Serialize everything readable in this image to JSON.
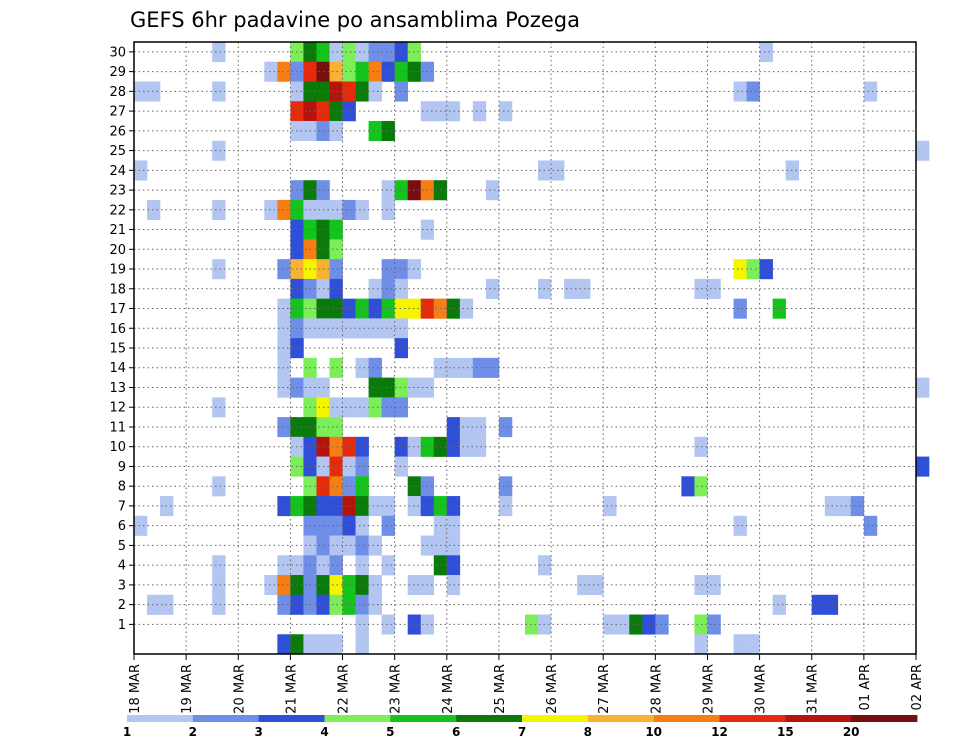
{
  "chart_data": {
    "type": "heatmap",
    "title": "GEFS 6hr padavine po ansamblima Pozega",
    "xlabel": "",
    "ylabel": "",
    "grid": true,
    "x_tick_labels": [
      "18 MAR",
      "19 MAR",
      "20 MAR",
      "21 MAR",
      "22 MAR",
      "23 MAR",
      "24 MAR",
      "25 MAR",
      "26 MAR",
      "27 MAR",
      "28 MAR",
      "29 MAR",
      "30 MAR",
      "31 MAR",
      "01 APR",
      "02 APR"
    ],
    "y_tick_labels": [
      "1",
      "2",
      "3",
      "4",
      "5",
      "6",
      "7",
      "8",
      "9",
      "10",
      "11",
      "12",
      "13",
      "14",
      "15",
      "16",
      "17",
      "18",
      "19",
      "20",
      "21",
      "22",
      "23",
      "24",
      "25",
      "26",
      "27",
      "28",
      "29",
      "30"
    ],
    "steps_per_day": 4,
    "colorbar": {
      "levels": [
        "1",
        "2",
        "3",
        "4",
        "5",
        "6",
        "7",
        "8",
        "10",
        "12",
        "15",
        "20"
      ],
      "colors": [
        "#b3c6f2",
        "#6f8ee8",
        "#2f4fd8",
        "#7cee58",
        "#14c41c",
        "#0a7a0a",
        "#f5f500",
        "#f9b132",
        "#f77e12",
        "#e52b0c",
        "#b5140c",
        "#780f0f"
      ]
    },
    "values_note": "cells: [member, step, class]; class indexes colorbar.colors (0=1-2 mm ... 11=>20 mm); step 0 = 18 MAR 00z",
    "cells": [
      [
        30,
        6,
        0
      ],
      [
        30,
        12,
        3
      ],
      [
        30,
        13,
        5
      ],
      [
        30,
        14,
        4
      ],
      [
        30,
        15,
        0
      ],
      [
        30,
        16,
        3
      ],
      [
        30,
        17,
        0
      ],
      [
        30,
        18,
        1
      ],
      [
        30,
        19,
        1
      ],
      [
        30,
        20,
        2
      ],
      [
        30,
        21,
        3
      ],
      [
        30,
        48,
        0
      ],
      [
        29,
        10,
        0
      ],
      [
        29,
        11,
        8
      ],
      [
        29,
        12,
        1
      ],
      [
        29,
        13,
        9
      ],
      [
        29,
        14,
        11
      ],
      [
        29,
        15,
        7
      ],
      [
        29,
        16,
        3
      ],
      [
        29,
        17,
        4
      ],
      [
        29,
        18,
        8
      ],
      [
        29,
        19,
        2
      ],
      [
        29,
        20,
        4
      ],
      [
        29,
        21,
        5
      ],
      [
        29,
        22,
        1
      ],
      [
        28,
        0,
        0
      ],
      [
        28,
        1,
        0
      ],
      [
        28,
        6,
        0
      ],
      [
        28,
        12,
        0
      ],
      [
        28,
        13,
        5
      ],
      [
        28,
        14,
        5
      ],
      [
        28,
        15,
        10
      ],
      [
        28,
        16,
        9
      ],
      [
        28,
        17,
        5
      ],
      [
        28,
        18,
        0
      ],
      [
        28,
        20,
        1
      ],
      [
        28,
        46,
        0
      ],
      [
        28,
        47,
        1
      ],
      [
        28,
        56,
        0
      ],
      [
        27,
        12,
        9
      ],
      [
        27,
        13,
        10
      ],
      [
        27,
        14,
        9
      ],
      [
        27,
        15,
        5
      ],
      [
        27,
        16,
        2
      ],
      [
        27,
        22,
        0
      ],
      [
        27,
        23,
        0
      ],
      [
        27,
        24,
        0
      ],
      [
        27,
        26,
        0
      ],
      [
        27,
        28,
        0
      ],
      [
        26,
        12,
        0
      ],
      [
        26,
        13,
        0
      ],
      [
        26,
        14,
        1
      ],
      [
        26,
        15,
        0
      ],
      [
        26,
        18,
        4
      ],
      [
        26,
        19,
        5
      ],
      [
        25,
        6,
        0
      ],
      [
        25,
        60,
        0
      ],
      [
        24,
        0,
        0
      ],
      [
        24,
        31,
        0
      ],
      [
        24,
        32,
        0
      ],
      [
        24,
        50,
        0
      ],
      [
        23,
        12,
        1
      ],
      [
        23,
        13,
        5
      ],
      [
        23,
        14,
        1
      ],
      [
        23,
        19,
        0
      ],
      [
        23,
        20,
        4
      ],
      [
        23,
        21,
        11
      ],
      [
        23,
        22,
        8
      ],
      [
        23,
        23,
        5
      ],
      [
        23,
        27,
        0
      ],
      [
        22,
        1,
        0
      ],
      [
        22,
        6,
        0
      ],
      [
        22,
        10,
        0
      ],
      [
        22,
        11,
        8
      ],
      [
        22,
        12,
        4
      ],
      [
        22,
        13,
        0
      ],
      [
        22,
        14,
        0
      ],
      [
        22,
        15,
        0
      ],
      [
        22,
        16,
        1
      ],
      [
        22,
        17,
        0
      ],
      [
        22,
        19,
        0
      ],
      [
        21,
        12,
        2
      ],
      [
        21,
        13,
        4
      ],
      [
        21,
        14,
        5
      ],
      [
        21,
        15,
        4
      ],
      [
        21,
        22,
        0
      ],
      [
        20,
        12,
        2
      ],
      [
        20,
        13,
        8
      ],
      [
        20,
        14,
        5
      ],
      [
        20,
        15,
        3
      ],
      [
        19,
        6,
        0
      ],
      [
        19,
        11,
        1
      ],
      [
        19,
        12,
        7
      ],
      [
        19,
        13,
        6
      ],
      [
        19,
        14,
        7
      ],
      [
        19,
        15,
        1
      ],
      [
        19,
        19,
        1
      ],
      [
        19,
        20,
        1
      ],
      [
        19,
        21,
        0
      ],
      [
        19,
        46,
        6
      ],
      [
        19,
        47,
        3
      ],
      [
        19,
        48,
        2
      ],
      [
        18,
        12,
        2
      ],
      [
        18,
        13,
        1
      ],
      [
        18,
        14,
        0
      ],
      [
        18,
        15,
        2
      ],
      [
        18,
        18,
        0
      ],
      [
        18,
        19,
        1
      ],
      [
        18,
        20,
        0
      ],
      [
        18,
        27,
        0
      ],
      [
        18,
        31,
        0
      ],
      [
        18,
        33,
        0
      ],
      [
        18,
        34,
        0
      ],
      [
        18,
        43,
        0
      ],
      [
        18,
        44,
        0
      ],
      [
        17,
        11,
        0
      ],
      [
        17,
        12,
        4
      ],
      [
        17,
        13,
        3
      ],
      [
        17,
        14,
        5
      ],
      [
        17,
        15,
        5
      ],
      [
        17,
        16,
        2
      ],
      [
        17,
        17,
        4
      ],
      [
        17,
        18,
        2
      ],
      [
        17,
        19,
        4
      ],
      [
        17,
        20,
        6
      ],
      [
        17,
        21,
        6
      ],
      [
        17,
        22,
        9
      ],
      [
        17,
        23,
        8
      ],
      [
        17,
        24,
        5
      ],
      [
        17,
        25,
        0
      ],
      [
        17,
        46,
        1
      ],
      [
        17,
        49,
        4
      ],
      [
        16,
        11,
        0
      ],
      [
        16,
        12,
        1
      ],
      [
        16,
        13,
        0
      ],
      [
        16,
        14,
        0
      ],
      [
        16,
        15,
        0
      ],
      [
        16,
        16,
        0
      ],
      [
        16,
        17,
        0
      ],
      [
        16,
        18,
        0
      ],
      [
        16,
        19,
        0
      ],
      [
        16,
        20,
        0
      ],
      [
        15,
        11,
        0
      ],
      [
        15,
        12,
        2
      ],
      [
        15,
        20,
        2
      ],
      [
        14,
        11,
        0
      ],
      [
        14,
        13,
        3
      ],
      [
        14,
        15,
        3
      ],
      [
        14,
        17,
        0
      ],
      [
        14,
        18,
        1
      ],
      [
        14,
        23,
        0
      ],
      [
        14,
        24,
        0
      ],
      [
        14,
        25,
        0
      ],
      [
        14,
        26,
        1
      ],
      [
        14,
        27,
        1
      ],
      [
        13,
        11,
        0
      ],
      [
        13,
        12,
        1
      ],
      [
        13,
        13,
        0
      ],
      [
        13,
        14,
        0
      ],
      [
        13,
        18,
        5
      ],
      [
        13,
        19,
        5
      ],
      [
        13,
        20,
        3
      ],
      [
        13,
        21,
        0
      ],
      [
        13,
        22,
        0
      ],
      [
        13,
        60,
        0
      ],
      [
        12,
        6,
        0
      ],
      [
        12,
        13,
        3
      ],
      [
        12,
        14,
        6
      ],
      [
        12,
        15,
        0
      ],
      [
        12,
        16,
        0
      ],
      [
        12,
        17,
        0
      ],
      [
        12,
        18,
        3
      ],
      [
        12,
        19,
        1
      ],
      [
        12,
        20,
        1
      ],
      [
        11,
        11,
        1
      ],
      [
        11,
        12,
        5
      ],
      [
        11,
        13,
        5
      ],
      [
        11,
        14,
        3
      ],
      [
        11,
        15,
        3
      ],
      [
        11,
        24,
        2
      ],
      [
        11,
        25,
        0
      ],
      [
        11,
        26,
        0
      ],
      [
        11,
        28,
        1
      ],
      [
        10,
        12,
        0
      ],
      [
        10,
        13,
        2
      ],
      [
        10,
        14,
        10
      ],
      [
        10,
        15,
        8
      ],
      [
        10,
        16,
        9
      ],
      [
        10,
        17,
        2
      ],
      [
        10,
        20,
        2
      ],
      [
        10,
        21,
        0
      ],
      [
        10,
        22,
        4
      ],
      [
        10,
        23,
        5
      ],
      [
        10,
        24,
        2
      ],
      [
        10,
        25,
        0
      ],
      [
        10,
        26,
        0
      ],
      [
        10,
        43,
        0
      ],
      [
        9,
        12,
        3
      ],
      [
        9,
        13,
        2
      ],
      [
        9,
        14,
        0
      ],
      [
        9,
        15,
        9
      ],
      [
        9,
        16,
        0
      ],
      [
        9,
        17,
        1
      ],
      [
        9,
        20,
        0
      ],
      [
        9,
        60,
        2
      ],
      [
        8,
        6,
        0
      ],
      [
        8,
        13,
        3
      ],
      [
        8,
        14,
        9
      ],
      [
        8,
        15,
        8
      ],
      [
        8,
        16,
        1
      ],
      [
        8,
        17,
        4
      ],
      [
        8,
        21,
        5
      ],
      [
        8,
        22,
        1
      ],
      [
        8,
        28,
        1
      ],
      [
        8,
        42,
        2
      ],
      [
        8,
        43,
        3
      ],
      [
        7,
        2,
        0
      ],
      [
        7,
        11,
        2
      ],
      [
        7,
        12,
        4
      ],
      [
        7,
        13,
        5
      ],
      [
        7,
        14,
        2
      ],
      [
        7,
        15,
        2
      ],
      [
        7,
        16,
        10
      ],
      [
        7,
        17,
        5
      ],
      [
        7,
        18,
        0
      ],
      [
        7,
        19,
        0
      ],
      [
        7,
        21,
        0
      ],
      [
        7,
        22,
        2
      ],
      [
        7,
        23,
        4
      ],
      [
        7,
        24,
        2
      ],
      [
        7,
        28,
        0
      ],
      [
        7,
        36,
        0
      ],
      [
        7,
        53,
        0
      ],
      [
        7,
        54,
        0
      ],
      [
        7,
        55,
        1
      ],
      [
        6,
        0,
        0
      ],
      [
        6,
        13,
        1
      ],
      [
        6,
        14,
        1
      ],
      [
        6,
        15,
        1
      ],
      [
        6,
        16,
        2
      ],
      [
        6,
        17,
        0
      ],
      [
        6,
        19,
        1
      ],
      [
        6,
        23,
        0
      ],
      [
        6,
        24,
        0
      ],
      [
        6,
        46,
        0
      ],
      [
        6,
        56,
        1
      ],
      [
        5,
        13,
        0
      ],
      [
        5,
        14,
        1
      ],
      [
        5,
        15,
        0
      ],
      [
        5,
        16,
        0
      ],
      [
        5,
        17,
        1
      ],
      [
        5,
        18,
        0
      ],
      [
        5,
        22,
        0
      ],
      [
        5,
        23,
        0
      ],
      [
        5,
        24,
        0
      ],
      [
        4,
        6,
        0
      ],
      [
        4,
        11,
        0
      ],
      [
        4,
        12,
        0
      ],
      [
        4,
        13,
        1
      ],
      [
        4,
        14,
        0
      ],
      [
        4,
        15,
        1
      ],
      [
        4,
        17,
        0
      ],
      [
        4,
        19,
        0
      ],
      [
        4,
        23,
        5
      ],
      [
        4,
        24,
        2
      ],
      [
        4,
        31,
        0
      ],
      [
        3,
        6,
        0
      ],
      [
        3,
        10,
        0
      ],
      [
        3,
        11,
        8
      ],
      [
        3,
        12,
        5
      ],
      [
        3,
        13,
        1
      ],
      [
        3,
        14,
        5
      ],
      [
        3,
        15,
        6
      ],
      [
        3,
        16,
        4
      ],
      [
        3,
        17,
        5
      ],
      [
        3,
        18,
        0
      ],
      [
        3,
        21,
        0
      ],
      [
        3,
        22,
        0
      ],
      [
        3,
        24,
        0
      ],
      [
        3,
        34,
        0
      ],
      [
        3,
        35,
        0
      ],
      [
        3,
        43,
        0
      ],
      [
        3,
        44,
        0
      ],
      [
        2,
        1,
        0
      ],
      [
        2,
        2,
        0
      ],
      [
        2,
        6,
        0
      ],
      [
        2,
        11,
        1
      ],
      [
        2,
        12,
        2
      ],
      [
        2,
        13,
        1
      ],
      [
        2,
        14,
        2
      ],
      [
        2,
        15,
        3
      ],
      [
        2,
        16,
        4
      ],
      [
        2,
        17,
        1
      ],
      [
        2,
        18,
        0
      ],
      [
        2,
        49,
        0
      ],
      [
        2,
        52,
        2
      ],
      [
        2,
        53,
        2
      ],
      [
        1,
        17,
        0
      ],
      [
        1,
        19,
        0
      ],
      [
        1,
        21,
        2
      ],
      [
        1,
        22,
        0
      ],
      [
        1,
        30,
        3
      ],
      [
        1,
        31,
        0
      ],
      [
        1,
        36,
        0
      ],
      [
        1,
        37,
        0
      ],
      [
        1,
        38,
        5
      ],
      [
        1,
        39,
        2
      ],
      [
        1,
        40,
        1
      ],
      [
        1,
        43,
        3
      ],
      [
        1,
        44,
        1
      ],
      [
        0,
        11,
        2
      ],
      [
        0,
        12,
        5
      ],
      [
        0,
        13,
        0
      ],
      [
        0,
        14,
        0
      ],
      [
        0,
        15,
        0
      ],
      [
        0,
        17,
        0
      ],
      [
        0,
        43,
        0
      ],
      [
        0,
        46,
        0
      ],
      [
        0,
        47,
        0
      ]
    ]
  }
}
